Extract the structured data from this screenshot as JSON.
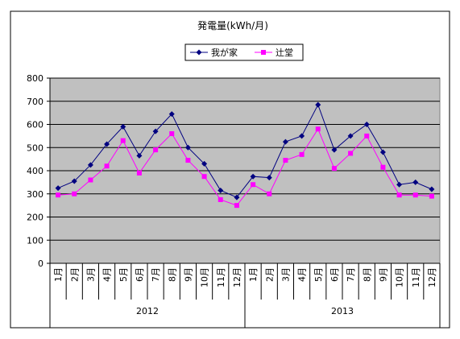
{
  "chart_data": {
    "type": "line",
    "title": "発電量(kWh/月)",
    "xlabel": "",
    "ylabel": "",
    "ylim": [
      0,
      800
    ],
    "yticks": [
      0,
      100,
      200,
      300,
      400,
      500,
      600,
      700,
      800
    ],
    "grid": true,
    "legend_position": "top",
    "plot_background": "#c0c0c0",
    "categories": [
      "1月",
      "2月",
      "3月",
      "4月",
      "5月",
      "6月",
      "7月",
      "8月",
      "9月",
      "10月",
      "11月",
      "12月",
      "1月",
      "2月",
      "3月",
      "4月",
      "5月",
      "6月",
      "7月",
      "8月",
      "9月",
      "10月",
      "11月",
      "12月"
    ],
    "groups": [
      {
        "label": "2012",
        "start": 0,
        "count": 12
      },
      {
        "label": "2013",
        "start": 12,
        "count": 12
      }
    ],
    "series": [
      {
        "name": "我が家",
        "color": "#000080",
        "marker": "diamond",
        "values": [
          325,
          355,
          425,
          515,
          590,
          465,
          570,
          645,
          500,
          430,
          315,
          285,
          375,
          370,
          525,
          550,
          685,
          490,
          550,
          600,
          480,
          340,
          350,
          320
        ]
      },
      {
        "name": "辻堂",
        "color": "#ff00ff",
        "marker": "square",
        "values": [
          295,
          300,
          360,
          420,
          530,
          390,
          490,
          560,
          445,
          375,
          275,
          250,
          340,
          300,
          445,
          470,
          580,
          410,
          475,
          550,
          415,
          295,
          295,
          290
        ]
      }
    ]
  }
}
